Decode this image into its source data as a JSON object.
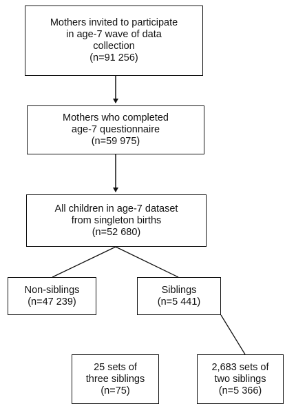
{
  "boxes": {
    "invited": {
      "lines": [
        "Mothers invited to participate",
        "in age-7 wave of data",
        "collection",
        "(n=91 256)"
      ]
    },
    "completed": {
      "lines": [
        "Mothers who completed",
        "age-7 questionnaire",
        "(n=59 975)"
      ]
    },
    "all": {
      "lines": [
        "All children in age-7 dataset",
        "from singleton births",
        "(n=52 680)"
      ]
    },
    "nonsib": {
      "lines": [
        "Non-siblings",
        "(n=47 239)"
      ]
    },
    "sib": {
      "lines": [
        "Siblings",
        "(n=5 441)"
      ]
    },
    "three": {
      "lines": [
        "25 sets of",
        "three siblings",
        "(n=75)"
      ]
    },
    "two": {
      "lines": [
        "2,683 sets of",
        "two siblings",
        "(n=5 366)"
      ]
    }
  }
}
